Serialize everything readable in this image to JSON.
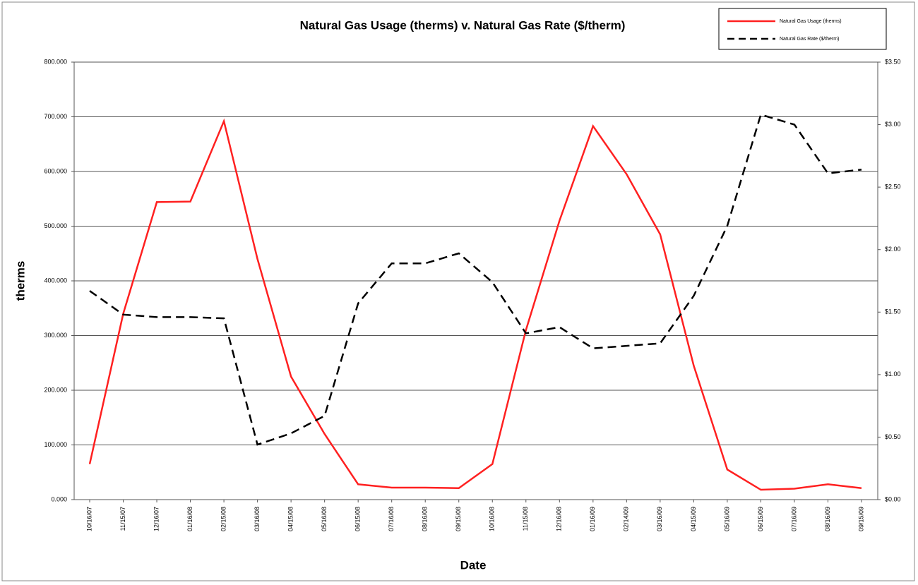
{
  "chart_data": {
    "type": "line",
    "title": "Natural Gas Usage (therms) v. Natural Gas Rate ($/therm)",
    "xlabel": "Date",
    "ylabel": "therms",
    "categories": [
      "10/16/07",
      "11/15/07",
      "12/16/07",
      "01/16/08",
      "02/15/08",
      "03/16/08",
      "04/15/08",
      "05/16/08",
      "06/15/08",
      "07/16/08",
      "08/16/08",
      "09/15/08",
      "10/16/08",
      "11/15/08",
      "12/16/08",
      "01/16/09",
      "02/14/09",
      "03/16/09",
      "04/15/09",
      "05/16/09",
      "06/15/09",
      "07/16/09",
      "08/16/09",
      "09/15/09"
    ],
    "series": [
      {
        "name": "Natural Gas Usage (therms)",
        "color": "#ff2020",
        "style": "solid",
        "values": [
          65,
          340,
          544,
          545,
          692,
          440,
          225,
          120,
          28,
          22,
          22,
          21,
          65,
          310,
          510,
          683,
          595,
          485,
          245,
          55,
          18,
          20,
          28,
          21
        ]
      },
      {
        "name": "Natural Gas Rate ($/therm)",
        "color": "#000000",
        "style": "dashed",
        "axis": "y2",
        "values": [
          1.67,
          1.48,
          1.46,
          1.46,
          1.45,
          0.44,
          0.53,
          0.67,
          1.57,
          1.89,
          1.89,
          1.97,
          1.74,
          1.33,
          1.38,
          1.21,
          1.23,
          1.25,
          1.63,
          2.19,
          3.08,
          3.0,
          2.61,
          2.64
        ]
      }
    ],
    "ylim": [
      0,
      800
    ],
    "yticks": [
      {
        "value": 0,
        "label": "0.000"
      },
      {
        "value": 100,
        "label": "100.000"
      },
      {
        "value": 200,
        "label": "200.000"
      },
      {
        "value": 300,
        "label": "300.000"
      },
      {
        "value": 400,
        "label": "400.000"
      },
      {
        "value": 500,
        "label": "500.000"
      },
      {
        "value": 600,
        "label": "600.000"
      },
      {
        "value": 700,
        "label": "700.000"
      },
      {
        "value": 800,
        "label": "800.000"
      }
    ],
    "y2lim": [
      0,
      3.5
    ],
    "y2ticks": [
      {
        "value": 0,
        "label": "$0.00"
      },
      {
        "value": 0.5,
        "label": "$0.50"
      },
      {
        "value": 1,
        "label": "$1.00"
      },
      {
        "value": 1.5,
        "label": "$1.50"
      },
      {
        "value": 2,
        "label": "$2.00"
      },
      {
        "value": 2.5,
        "label": "$2.50"
      },
      {
        "value": 3,
        "label": "$3.00"
      },
      {
        "value": 3.5,
        "label": "$3.50"
      }
    ],
    "grid": true,
    "legend": "upper right"
  }
}
